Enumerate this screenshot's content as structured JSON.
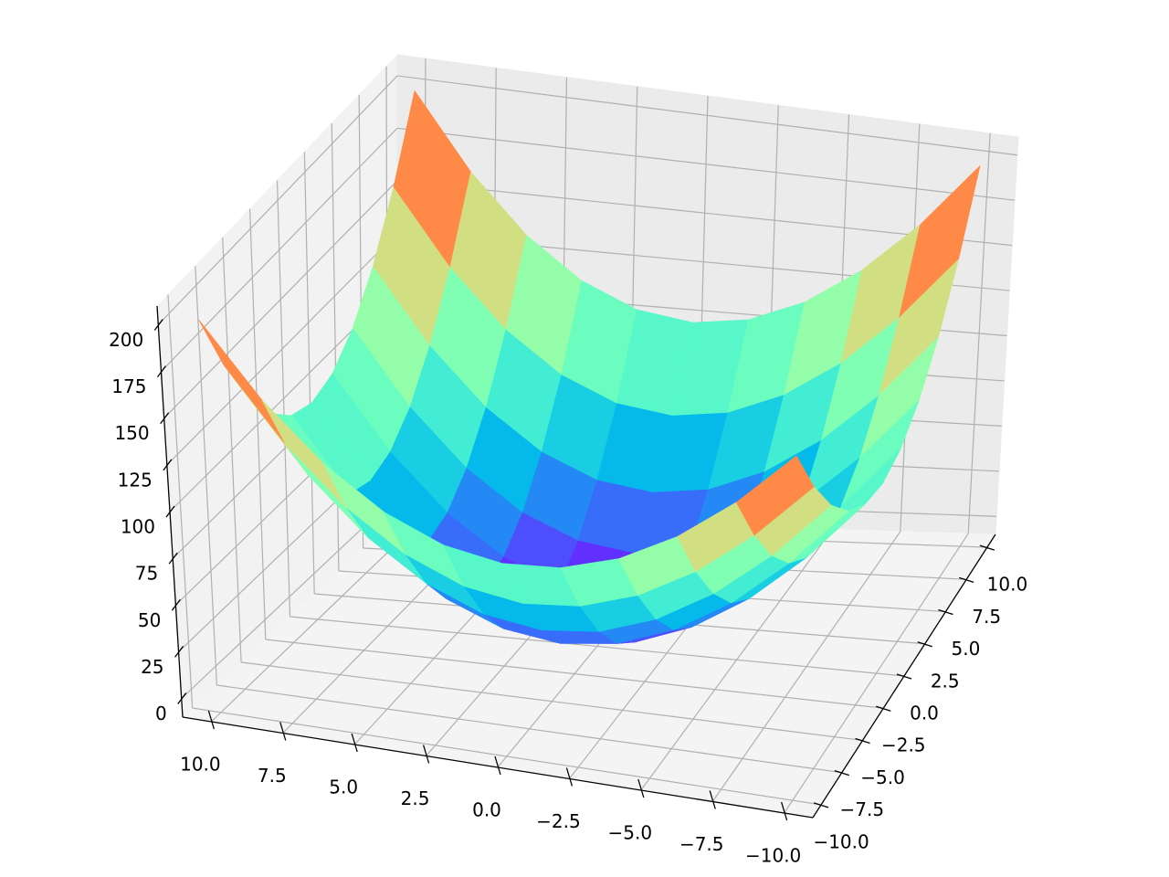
{
  "chart_data": {
    "type": "surface",
    "cmap": "rainbow",
    "x": [
      -10,
      -8,
      -6,
      -4,
      -2,
      0,
      2,
      4,
      6,
      8,
      10
    ],
    "y": [
      -10,
      -8,
      -6,
      -4,
      -2,
      0,
      2,
      4,
      6,
      8,
      10
    ],
    "z": [
      [
        200,
        164,
        136,
        116,
        104,
        100,
        104,
        116,
        136,
        164,
        200
      ],
      [
        164,
        128,
        100,
        80,
        68,
        64,
        68,
        80,
        100,
        128,
        164
      ],
      [
        136,
        100,
        72,
        52,
        40,
        36,
        40,
        52,
        72,
        100,
        136
      ],
      [
        116,
        80,
        52,
        32,
        20,
        16,
        20,
        32,
        52,
        80,
        116
      ],
      [
        104,
        68,
        40,
        20,
        8,
        4,
        8,
        20,
        40,
        68,
        104
      ],
      [
        100,
        64,
        36,
        16,
        4,
        0,
        4,
        16,
        36,
        64,
        100
      ],
      [
        104,
        68,
        40,
        20,
        8,
        4,
        8,
        20,
        40,
        68,
        104
      ],
      [
        116,
        80,
        52,
        32,
        20,
        16,
        20,
        32,
        52,
        80,
        116
      ],
      [
        136,
        100,
        72,
        52,
        40,
        36,
        40,
        52,
        72,
        100,
        136
      ],
      [
        164,
        128,
        100,
        80,
        68,
        64,
        68,
        80,
        100,
        128,
        164
      ],
      [
        200,
        164,
        136,
        116,
        104,
        100,
        104,
        116,
        136,
        164,
        200
      ]
    ],
    "xlim": [
      -11,
      11
    ],
    "ylim": [
      -11,
      11
    ],
    "zlim": [
      -10,
      210
    ],
    "xticks": [
      {
        "value": -10,
        "label": "−10.0"
      },
      {
        "value": -7.5,
        "label": "−7.5"
      },
      {
        "value": -5,
        "label": "−5.0"
      },
      {
        "value": -2.5,
        "label": "−2.5"
      },
      {
        "value": 0,
        "label": "0.0"
      },
      2.5,
      {
        "value": 5,
        "label": "5.0"
      },
      7.5,
      {
        "value": 10,
        "label": "10.0"
      }
    ],
    "yticks": [
      {
        "value": -10,
        "label": "−10.0"
      },
      {
        "value": -7.5,
        "label": "−7.5"
      },
      {
        "value": -5,
        "label": "−5.0"
      },
      {
        "value": -2.5,
        "label": "−2.5"
      },
      {
        "value": 0,
        "label": "0.0"
      },
      2.5,
      {
        "value": 5,
        "label": "5.0"
      },
      7.5,
      {
        "value": 10,
        "label": "10.0"
      }
    ],
    "zticks": [
      0,
      25,
      50,
      75,
      100,
      125,
      150,
      175,
      200
    ],
    "grid": true
  }
}
